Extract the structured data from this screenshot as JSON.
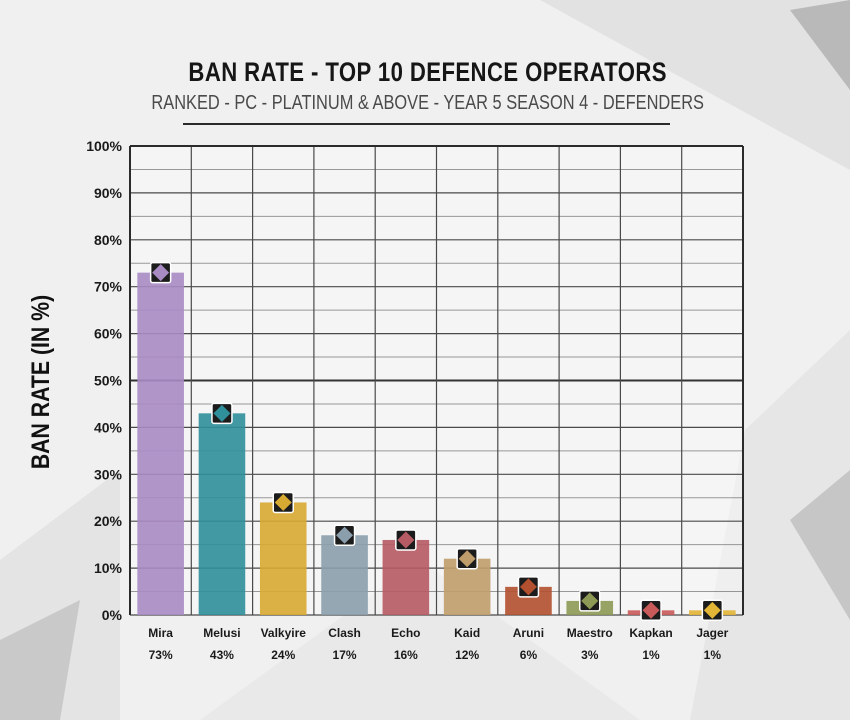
{
  "colors": {
    "grid": "#4a4a4a",
    "bar_colors": [
      "#a98bc4",
      "#2f8f9a",
      "#d8aa32",
      "#8a9eac",
      "#b65a63",
      "#bf9d6a",
      "#b2502f",
      "#8c9a55",
      "#c95a5a",
      "#e2b536"
    ]
  },
  "chart_data": {
    "type": "bar",
    "title": "BAN RATE - TOP 10 DEFENCE OPERATORS",
    "subtitle": "RANKED - PC - PLATINUM & ABOVE - YEAR 5 SEASON 4 - DEFENDERS",
    "xlabel": "",
    "ylabel": "BAN RATE (IN %)",
    "ylim": [
      0,
      100
    ],
    "yticks": [
      0,
      10,
      20,
      30,
      40,
      50,
      60,
      70,
      80,
      90,
      100
    ],
    "ytick_labels": [
      "0%",
      "10%",
      "20%",
      "30%",
      "40%",
      "50%",
      "60%",
      "70%",
      "80%",
      "90%",
      "100%"
    ],
    "grid": true,
    "reference_line": 50,
    "categories": [
      "Mira",
      "Melusi",
      "Valkyire",
      "Clash",
      "Echo",
      "Kaid",
      "Aruni",
      "Maestro",
      "Kapkan",
      "Jager"
    ],
    "values": [
      73,
      43,
      24,
      17,
      16,
      12,
      6,
      3,
      1,
      1
    ],
    "value_labels": [
      "73%",
      "43%",
      "24%",
      "17%",
      "16%",
      "12%",
      "6%",
      "3%",
      "1%",
      "1%"
    ]
  }
}
